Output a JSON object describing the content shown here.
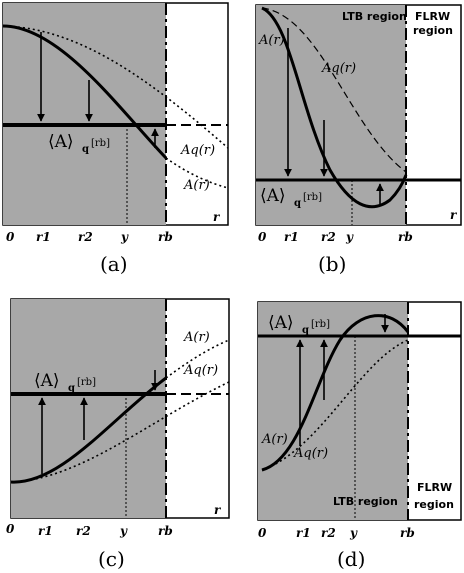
{
  "colors": {
    "shaded": "#a8a8a8",
    "ink": "#000000",
    "background": "#ffffff"
  },
  "labels": {
    "A_r": "A(r)",
    "Aq_r": "Aq(r)",
    "avg_main": "⟨A⟩",
    "avg_q": "q",
    "avg_rb": "[rb]",
    "ltb_region": "LTB region",
    "flrw_1": "FLRW",
    "flrw_2": "region",
    "axis_r": "r",
    "ticks": [
      "0",
      "r1",
      "r2",
      "y",
      "rb"
    ]
  },
  "captions": [
    "(a)",
    "(b)",
    "(c)",
    "(d)"
  ]
}
